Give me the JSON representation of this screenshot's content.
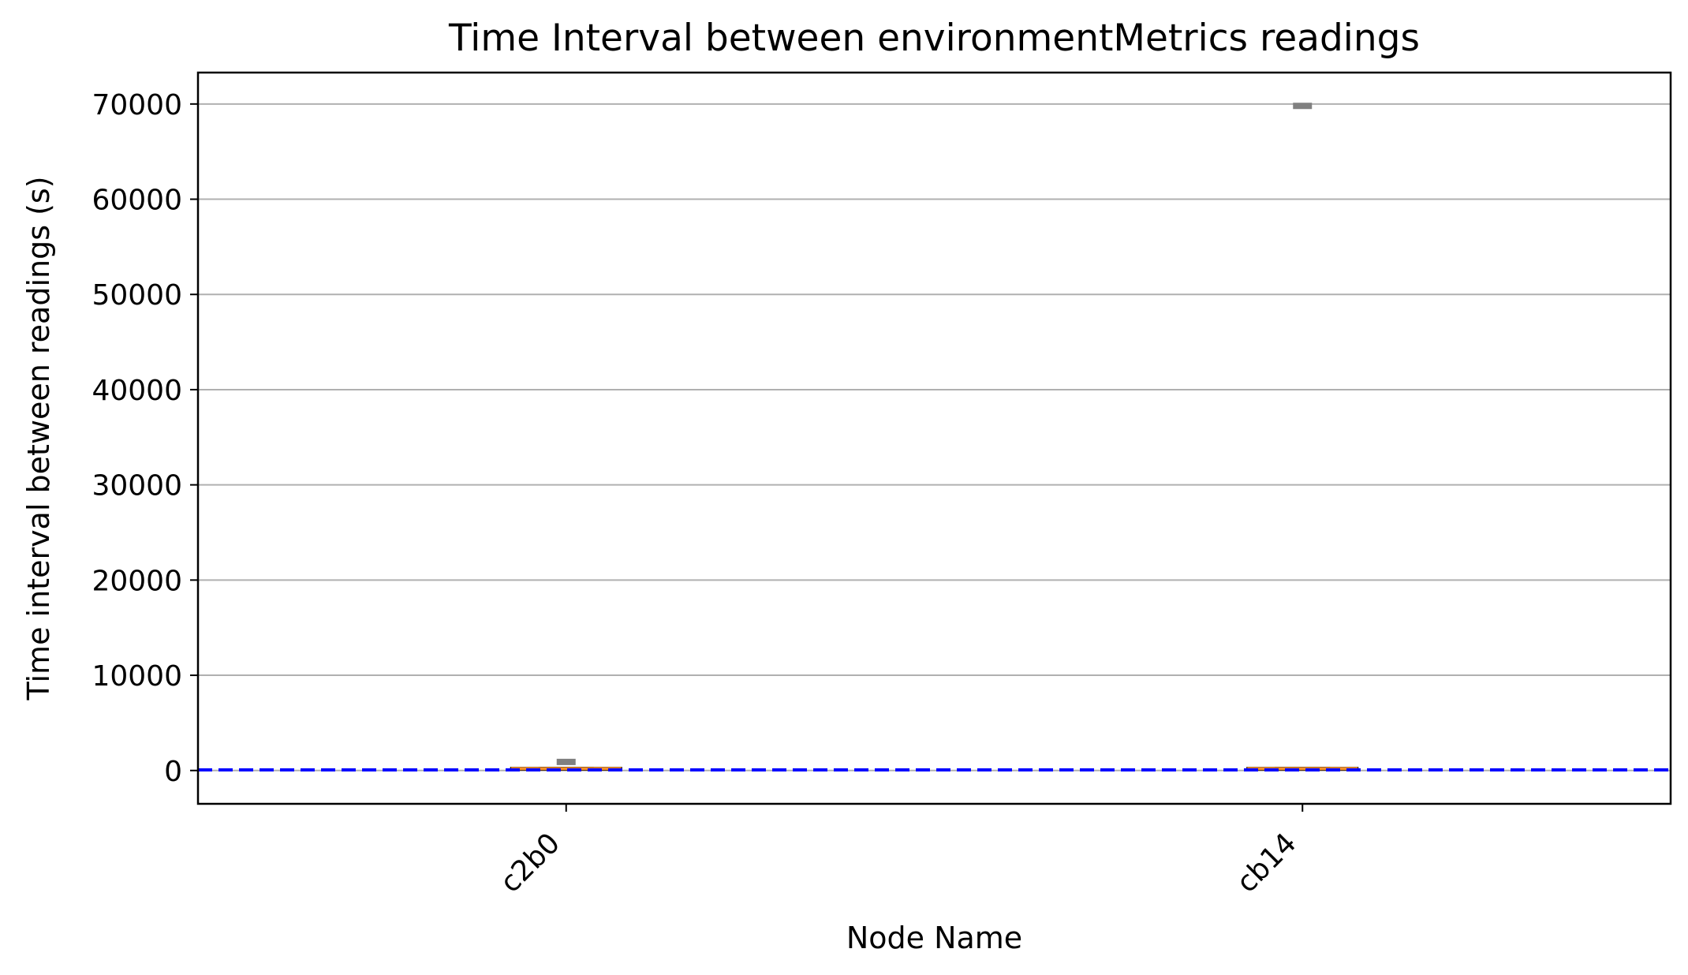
{
  "chart_data": {
    "type": "box",
    "title": "Time Interval between environmentMetrics readings",
    "xlabel": "Node Name",
    "ylabel": "Time interval between readings (s)",
    "categories": [
      "c2b0",
      "cb14"
    ],
    "ylim": [
      -3500,
      73300
    ],
    "yticks": [
      0,
      10000,
      20000,
      30000,
      40000,
      50000,
      60000,
      70000
    ],
    "grid": "horizontal",
    "boxes": [
      {
        "name": "c2b0",
        "q1": 60,
        "median": 200,
        "q3": 300,
        "whisker_low": 60,
        "whisker_high": 300,
        "outliers": [
          900
        ]
      },
      {
        "name": "cb14",
        "q1": 60,
        "median": 200,
        "q3": 300,
        "whisker_low": 60,
        "whisker_high": 300,
        "outliers": [
          69800
        ]
      }
    ],
    "reference_line": {
      "y": 60,
      "style": "dashed"
    },
    "colors": {
      "median": "#f28e2b",
      "box": "#000000",
      "outlier": "#808080",
      "reference_line": "#0000ff",
      "grid": "#b0b0b0"
    }
  }
}
